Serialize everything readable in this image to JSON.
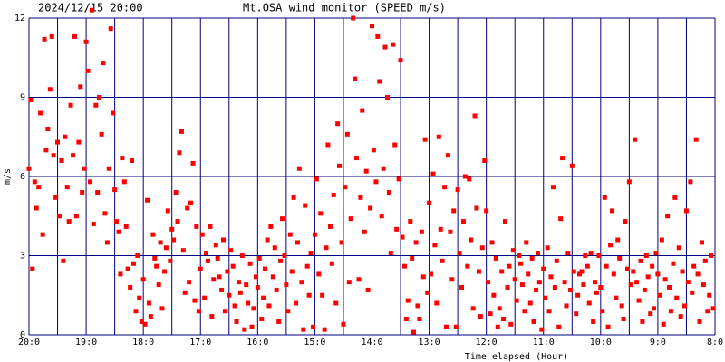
{
  "chart_data": {
    "type": "scatter",
    "title": "Mt.OSA wind monitor (SPEED m/s)",
    "timestamp": "2024/12/15 20:00",
    "y_label": "m/s",
    "x_label": "Time elapsed (Hour)",
    "xlim": [
      0,
      12
    ],
    "ylim": [
      0,
      12
    ],
    "xticks": [
      {
        "value": 0,
        "label": "20:0"
      },
      {
        "value": 1,
        "label": "19:0"
      },
      {
        "value": 2,
        "label": "18:0"
      },
      {
        "value": 3,
        "label": "17:0"
      },
      {
        "value": 4,
        "label": "16:0"
      },
      {
        "value": 5,
        "label": "15:0"
      },
      {
        "value": 6,
        "label": "14:0"
      },
      {
        "value": 7,
        "label": "13:0"
      },
      {
        "value": 8,
        "label": "12:0"
      },
      {
        "value": 9,
        "label": "11:0"
      },
      {
        "value": 10,
        "label": "10:0"
      },
      {
        "value": 11,
        "label": "9:0"
      },
      {
        "value": 12,
        "label": "8:0"
      }
    ],
    "x_minor_ticks": [
      0.5,
      1.5,
      2.5,
      3.5,
      4.5,
      5.5,
      6.5,
      7.5,
      8.5,
      9.5,
      10.5,
      11.5
    ],
    "yticks": [
      0,
      3,
      6,
      9,
      12
    ],
    "grid": true,
    "grid_color": "#000080",
    "series": [
      {
        "name": "SPEED",
        "color": "#ff0000",
        "x": [
          0.0,
          0.03,
          0.06,
          0.1,
          0.13,
          0.17,
          0.2,
          0.24,
          0.27,
          0.3,
          0.33,
          0.37,
          0.4,
          0.43,
          0.47,
          0.5,
          0.53,
          0.57,
          0.6,
          0.63,
          0.67,
          0.7,
          0.73,
          0.77,
          0.8,
          0.83,
          0.87,
          0.9,
          0.93,
          0.97,
          1.0,
          1.03,
          1.07,
          1.1,
          1.13,
          1.17,
          1.2,
          1.23,
          1.27,
          1.3,
          1.33,
          1.37,
          1.4,
          1.43,
          1.47,
          1.5,
          1.53,
          1.57,
          1.6,
          1.63,
          1.67,
          1.7,
          1.73,
          1.77,
          1.8,
          1.83,
          1.87,
          1.9,
          1.93,
          1.97,
          2.0,
          2.03,
          2.07,
          2.1,
          2.13,
          2.17,
          2.2,
          2.23,
          2.27,
          2.3,
          2.33,
          2.37,
          2.4,
          2.43,
          2.47,
          2.5,
          2.53,
          2.57,
          2.6,
          2.63,
          2.67,
          2.7,
          2.73,
          2.77,
          2.8,
          2.83,
          2.87,
          2.9,
          2.93,
          2.97,
          3.0,
          3.03,
          3.07,
          3.1,
          3.13,
          3.17,
          3.2,
          3.23,
          3.27,
          3.3,
          3.33,
          3.37,
          3.4,
          3.43,
          3.47,
          3.5,
          3.53,
          3.57,
          3.6,
          3.63,
          3.67,
          3.7,
          3.73,
          3.77,
          3.8,
          3.83,
          3.87,
          3.9,
          3.93,
          3.97,
          4.0,
          4.03,
          4.07,
          4.1,
          4.13,
          4.17,
          4.2,
          4.23,
          4.27,
          4.3,
          4.33,
          4.37,
          4.4,
          4.43,
          4.47,
          4.5,
          4.53,
          4.57,
          4.6,
          4.63,
          4.67,
          4.7,
          4.73,
          4.77,
          4.8,
          4.83,
          4.87,
          4.9,
          4.93,
          4.97,
          5.0,
          5.03,
          5.07,
          5.1,
          5.13,
          5.17,
          5.2,
          5.23,
          5.27,
          5.3,
          5.33,
          5.37,
          5.4,
          5.43,
          5.47,
          5.5,
          5.53,
          5.57,
          5.6,
          5.63,
          5.67,
          5.7,
          5.73,
          5.77,
          5.8,
          5.83,
          5.87,
          5.9,
          5.93,
          5.97,
          6.0,
          6.03,
          6.07,
          6.1,
          6.13,
          6.17,
          6.2,
          6.23,
          6.27,
          6.3,
          6.33,
          6.37,
          6.4,
          6.43,
          6.47,
          6.5,
          6.53,
          6.57,
          6.6,
          6.63,
          6.67,
          6.7,
          6.73,
          6.77,
          6.8,
          6.83,
          6.87,
          6.9,
          6.93,
          6.97,
          7.0,
          7.03,
          7.07,
          7.1,
          7.13,
          7.17,
          7.2,
          7.23,
          7.27,
          7.3,
          7.33,
          7.37,
          7.4,
          7.43,
          7.47,
          7.5,
          7.53,
          7.57,
          7.6,
          7.63,
          7.67,
          7.7,
          7.73,
          7.77,
          7.8,
          7.83,
          7.87,
          7.9,
          7.93,
          7.97,
          8.0,
          8.03,
          8.07,
          8.1,
          8.13,
          8.17,
          8.2,
          8.23,
          8.27,
          8.3,
          8.33,
          8.37,
          8.4,
          8.43,
          8.47,
          8.5,
          8.53,
          8.57,
          8.6,
          8.63,
          8.67,
          8.7,
          8.73,
          8.77,
          8.8,
          8.83,
          8.87,
          8.9,
          8.93,
          8.97,
          9.0,
          9.03,
          9.07,
          9.1,
          9.13,
          9.17,
          9.2,
          9.23,
          9.27,
          9.3,
          9.33,
          9.37,
          9.4,
          9.43,
          9.47,
          9.5,
          9.53,
          9.57,
          9.6,
          9.63,
          9.67,
          9.7,
          9.73,
          9.77,
          9.8,
          9.83,
          9.87,
          9.9,
          9.93,
          9.97,
          10.0,
          10.03,
          10.07,
          10.1,
          10.13,
          10.17,
          10.2,
          10.23,
          10.27,
          10.3,
          10.33,
          10.37,
          10.4,
          10.43,
          10.47,
          10.5,
          10.53,
          10.57,
          10.6,
          10.63,
          10.67,
          10.7,
          10.73,
          10.77,
          10.8,
          10.83,
          10.87,
          10.9,
          10.93,
          10.97,
          11.0,
          11.03,
          11.07,
          11.1,
          11.13,
          11.17,
          11.2,
          11.23,
          11.27,
          11.3,
          11.33,
          11.37,
          11.4,
          11.43,
          11.47,
          11.5,
          11.53,
          11.57,
          11.6,
          11.63,
          11.67,
          11.7,
          11.73,
          11.77,
          11.8,
          11.83,
          11.87,
          11.9,
          11.93,
          11.97
        ],
        "values": [
          6.3,
          8.9,
          2.5,
          5.8,
          4.8,
          5.6,
          8.4,
          3.8,
          11.2,
          7.0,
          7.8,
          9.3,
          11.3,
          6.8,
          5.2,
          7.3,
          4.5,
          6.6,
          2.8,
          7.5,
          5.6,
          4.3,
          8.7,
          6.8,
          11.3,
          4.5,
          7.3,
          9.4,
          5.4,
          6.3,
          11.1,
          10.0,
          5.8,
          12.3,
          4.2,
          8.7,
          5.4,
          9.0,
          7.6,
          10.3,
          4.6,
          3.5,
          6.3,
          11.6,
          8.4,
          5.5,
          4.3,
          3.9,
          2.3,
          6.7,
          5.8,
          4.1,
          2.5,
          1.8,
          6.6,
          2.7,
          0.9,
          3.0,
          1.4,
          0.5,
          2.1,
          0.4,
          5.1,
          1.2,
          0.7,
          3.8,
          2.9,
          2.6,
          1.9,
          3.5,
          1.0,
          2.4,
          3.3,
          4.7,
          2.8,
          4.0,
          3.6,
          5.4,
          4.3,
          6.9,
          7.7,
          3.2,
          1.6,
          4.8,
          2.0,
          5.0,
          6.5,
          1.3,
          4.1,
          0.9,
          2.5,
          3.8,
          1.4,
          3.1,
          2.8,
          4.1,
          0.7,
          2.1,
          3.4,
          2.9,
          2.2,
          1.7,
          3.6,
          0.9,
          2.4,
          1.5,
          3.2,
          2.6,
          1.1,
          0.5,
          2.0,
          1.6,
          3.0,
          0.2,
          1.9,
          1.2,
          2.7,
          0.3,
          1.0,
          2.2,
          1.8,
          2.9,
          0.6,
          1.4,
          2.5,
          3.6,
          1.1,
          4.1,
          2.2,
          3.3,
          1.7,
          0.5,
          2.8,
          4.4,
          3.0,
          1.9,
          0.9,
          3.8,
          2.4,
          5.2,
          1.2,
          3.5,
          6.3,
          2.0,
          0.2,
          4.9,
          2.6,
          1.5,
          3.1,
          0.3,
          3.8,
          5.9,
          2.3,
          4.6,
          1.5,
          0.2,
          3.3,
          7.2,
          4.1,
          2.7,
          5.3,
          1.2,
          8.0,
          6.4,
          3.5,
          0.4,
          5.6,
          7.6,
          2.0,
          4.4,
          12.0,
          9.7,
          6.7,
          2.1,
          5.2,
          8.5,
          3.9,
          6.2,
          1.7,
          4.8,
          11.7,
          7.0,
          5.8,
          11.3,
          9.6,
          4.5,
          6.3,
          10.9,
          9.0,
          5.4,
          3.1,
          11.0,
          7.2,
          4.0,
          5.9,
          10.4,
          3.7,
          2.6,
          0.6,
          1.3,
          4.3,
          2.9,
          0.1,
          3.5,
          1.1,
          0.6,
          3.9,
          2.2,
          7.4,
          1.6,
          5.0,
          2.3,
          6.1,
          3.4,
          1.2,
          7.5,
          4.0,
          2.8,
          5.6,
          0.3,
          6.8,
          3.9,
          2.1,
          4.7,
          0.3,
          5.5,
          3.1,
          1.8,
          4.3,
          6.0,
          2.6,
          5.9,
          3.6,
          1.0,
          8.3,
          4.8,
          2.4,
          0.7,
          3.3,
          6.6,
          4.7,
          2.0,
          0.8,
          3.5,
          1.5,
          2.9,
          0.3,
          1.0,
          2.4,
          0.6,
          4.3,
          1.8,
          2.6,
          0.4,
          3.2,
          2.1,
          1.3,
          3.0,
          2.7,
          1.9,
          0.9,
          3.5,
          2.3,
          1.2,
          2.9,
          0.5,
          1.7,
          3.1,
          2.0,
          0.2,
          2.5,
          1.4,
          3.3,
          0.9,
          2.2,
          5.6,
          1.8,
          2.8,
          0.3,
          4.4,
          6.7,
          2.0,
          1.1,
          3.1,
          1.7,
          6.4,
          2.4,
          0.8,
          1.5,
          2.3,
          2.4,
          1.9,
          3.0,
          2.6,
          1.2,
          3.1,
          0.5,
          2.0,
          1.6,
          3.0,
          1.8,
          0.9,
          5.2,
          2.6,
          0.3,
          3.4,
          4.7,
          2.3,
          1.4,
          3.6,
          2.9,
          1.1,
          0.6,
          4.3,
          2.5,
          5.8,
          1.9,
          2.4,
          7.4,
          2.0,
          1.3,
          2.8,
          0.5,
          1.7,
          3.0,
          2.2,
          0.8,
          2.6,
          1.0,
          3.1,
          2.3,
          1.5,
          3.6,
          0.4,
          2.1,
          4.5,
          1.8,
          0.9,
          2.7,
          5.2,
          1.4,
          3.3,
          0.7,
          2.4,
          1.1,
          4.7,
          2.0,
          5.8,
          1.6,
          2.6,
          7.4,
          2.3,
          0.5,
          3.5,
          1.9,
          2.8,
          0.9,
          1.5,
          3.0,
          1.0
        ]
      }
    ]
  }
}
